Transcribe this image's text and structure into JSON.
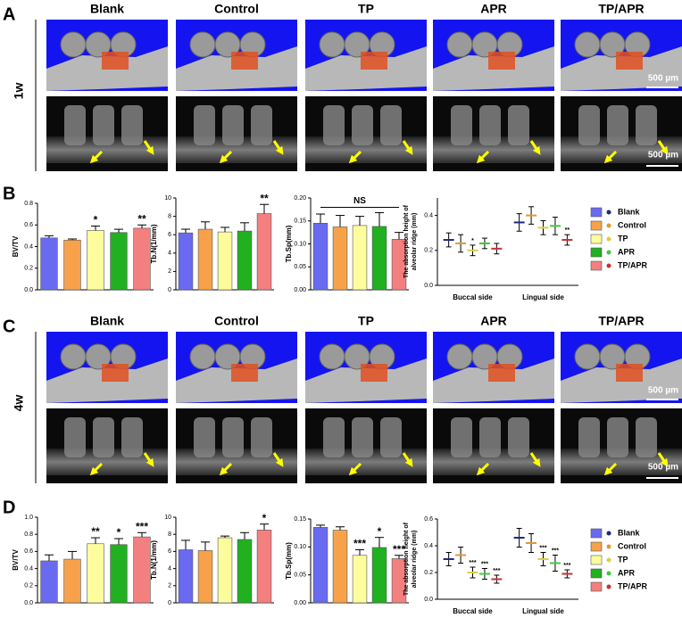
{
  "panels": [
    {
      "letter": "A",
      "timepoint": "1w",
      "columns": [
        "Blank",
        "Control",
        "TP",
        "APR",
        "TP/APR"
      ],
      "scale_bar": "500 µm"
    },
    {
      "letter": "C",
      "timepoint": "4w",
      "columns": [
        "Blank",
        "Control",
        "TP",
        "APR",
        "TP/APR"
      ],
      "scale_bar": "500 µm"
    }
  ],
  "chart_panels": [
    "B",
    "D"
  ],
  "chart_data": [
    {
      "type": "bar",
      "ylabel": [
        "BV/TV"
      ],
      "values": [
        0.48,
        0.46,
        0.55,
        0.53,
        0.57
      ],
      "errors": [
        0.02,
        0.01,
        0.04,
        0.03,
        0.03
      ],
      "colors": [
        "#6a6af0",
        "#f7a24a",
        "#fdfd9e",
        "#20b020",
        "#f47f7f"
      ],
      "annotations": [
        null,
        null,
        "*",
        null,
        "**"
      ],
      "ylim": [
        0,
        0.8
      ],
      "yticks": [
        {
          "value": 0,
          "label": "0.0"
        },
        0.2,
        0.4,
        0.6,
        0.8
      ]
    },
    {
      "type": "bar",
      "ylabel": [
        "Tb.N(1/mm)"
      ],
      "values": [
        6.2,
        6.6,
        6.3,
        6.4,
        8.3
      ],
      "errors": [
        0.4,
        0.8,
        0.5,
        0.9,
        1.0
      ],
      "colors": [
        "#6a6af0",
        "#f7a24a",
        "#fdfd9e",
        "#20b020",
        "#f47f7f"
      ],
      "annotations": [
        null,
        null,
        null,
        null,
        "**"
      ],
      "ylim": [
        0,
        10
      ],
      "yticks": [
        0,
        2,
        4,
        6,
        8,
        10
      ]
    },
    {
      "type": "bar",
      "ylabel": [
        "Tb.Sp(mm)"
      ],
      "values": [
        0.145,
        0.137,
        0.14,
        0.138,
        0.11
      ],
      "errors": [
        0.02,
        0.025,
        0.02,
        0.03,
        0.015
      ],
      "colors": [
        "#6a6af0",
        "#f7a24a",
        "#fdfd9e",
        "#20b020",
        "#f47f7f"
      ],
      "annotations": [
        null,
        null,
        null,
        null,
        null
      ],
      "bracket": "NS",
      "ylim": [
        0,
        0.2
      ],
      "yticks": [
        {
          "value": 0,
          "label": "0.00"
        },
        0.05,
        {
          "value": 0.1,
          "label": "0.10"
        },
        0.15,
        {
          "value": 0.2,
          "label": "0.20"
        }
      ]
    },
    {
      "type": "dot",
      "ylabel": [
        "The absorption height of",
        "alveolar ridge (mm)"
      ],
      "categories": [
        "Buccal side",
        "Lingual side"
      ],
      "legend": "right",
      "ylim": [
        0,
        0.5
      ],
      "yticks": [
        {
          "value": 0,
          "label": "0.0"
        },
        0.2,
        0.4
      ],
      "series": [
        {
          "name": "Blank",
          "color": "#6a6af0",
          "dot_color": "#1e2a7a",
          "values": [
            0.26,
            0.36
          ],
          "errors": [
            0.04,
            0.05
          ],
          "annotations": [
            null,
            null
          ]
        },
        {
          "name": "Control",
          "color": "#f7a24a",
          "dot_color": "#e09a30",
          "values": [
            0.24,
            0.4
          ],
          "errors": [
            0.05,
            0.05
          ],
          "annotations": [
            null,
            null
          ]
        },
        {
          "name": "TP",
          "color": "#fdfd9e",
          "dot_color": "#d8d040",
          "values": [
            0.2,
            0.33
          ],
          "errors": [
            0.03,
            0.04
          ],
          "annotations": [
            "*",
            null
          ]
        },
        {
          "name": "APR",
          "color": "#20b020",
          "dot_color": "#40c840",
          "values": [
            0.24,
            0.34
          ],
          "errors": [
            0.03,
            0.05
          ],
          "annotations": [
            null,
            null
          ]
        },
        {
          "name": "TP/APR",
          "color": "#f47f7f",
          "dot_color": "#c83030",
          "values": [
            0.21,
            0.26
          ],
          "errors": [
            0.03,
            0.03
          ],
          "annotations": [
            null,
            "**"
          ]
        }
      ]
    },
    {
      "type": "bar",
      "ylabel": [
        "BV/TV"
      ],
      "values": [
        0.49,
        0.51,
        0.69,
        0.68,
        0.77
      ],
      "errors": [
        0.07,
        0.09,
        0.07,
        0.07,
        0.05
      ],
      "colors": [
        "#6a6af0",
        "#f7a24a",
        "#fdfd9e",
        "#20b020",
        "#f47f7f"
      ],
      "annotations": [
        null,
        null,
        "**",
        "*",
        "***"
      ],
      "ylim": [
        0,
        1
      ],
      "yticks": [
        {
          "value": 0,
          "label": "0.0"
        },
        0.2,
        0.4,
        0.6,
        0.8,
        {
          "value": 1,
          "label": "1.0"
        }
      ]
    },
    {
      "type": "bar",
      "ylabel": [
        "Tb.N(1/mm)"
      ],
      "values": [
        6.2,
        6.1,
        7.6,
        7.4,
        8.5
      ],
      "errors": [
        1.1,
        1.0,
        0.2,
        0.8,
        0.7
      ],
      "colors": [
        "#6a6af0",
        "#f7a24a",
        "#fdfd9e",
        "#20b020",
        "#f47f7f"
      ],
      "annotations": [
        null,
        null,
        null,
        null,
        "*"
      ],
      "ylim": [
        0,
        10
      ],
      "yticks": [
        0,
        2,
        4,
        6,
        8,
        10
      ]
    },
    {
      "type": "bar",
      "ylabel": [
        "Tb.Sp(mm)"
      ],
      "values": [
        0.135,
        0.13,
        0.085,
        0.099,
        0.079
      ],
      "errors": [
        0.004,
        0.006,
        0.01,
        0.018,
        0.006
      ],
      "colors": [
        "#6a6af0",
        "#f7a24a",
        "#fdfd9e",
        "#20b020",
        "#f47f7f"
      ],
      "annotations": [
        null,
        null,
        "***",
        "*",
        "***"
      ],
      "ylim": [
        0,
        0.15
      ],
      "yticks": [
        {
          "value": 0,
          "label": "0.00"
        },
        0.05,
        {
          "value": 0.1,
          "label": "0.10"
        },
        0.15
      ]
    },
    {
      "type": "dot",
      "ylabel": [
        "The absorption height of",
        "alveolar ridge (mm)"
      ],
      "categories": [
        "Buccal side",
        "Lingual side"
      ],
      "legend": "right",
      "ylim": [
        0,
        0.6
      ],
      "yticks": [
        {
          "value": 0,
          "label": "0.0"
        },
        0.2,
        0.4,
        0.6
      ],
      "series": [
        {
          "name": "Blank",
          "color": "#6a6af0",
          "dot_color": "#1e2a7a",
          "values": [
            0.3,
            0.46
          ],
          "errors": [
            0.05,
            0.07
          ],
          "annotations": [
            null,
            null
          ]
        },
        {
          "name": "Control",
          "color": "#f7a24a",
          "dot_color": "#e09a30",
          "values": [
            0.33,
            0.42
          ],
          "errors": [
            0.06,
            0.07
          ],
          "annotations": [
            null,
            null
          ]
        },
        {
          "name": "TP",
          "color": "#fdfd9e",
          "dot_color": "#d8d040",
          "values": [
            0.2,
            0.3
          ],
          "errors": [
            0.04,
            0.05
          ],
          "annotations": [
            "***",
            "***"
          ]
        },
        {
          "name": "APR",
          "color": "#20b020",
          "dot_color": "#40c840",
          "values": [
            0.19,
            0.27
          ],
          "errors": [
            0.04,
            0.06
          ],
          "annotations": [
            "***",
            "***"
          ]
        },
        {
          "name": "TP/APR",
          "color": "#f47f7f",
          "dot_color": "#c83030",
          "values": [
            0.15,
            0.19
          ],
          "errors": [
            0.03,
            0.03
          ],
          "annotations": [
            "***",
            "***"
          ]
        }
      ]
    }
  ]
}
